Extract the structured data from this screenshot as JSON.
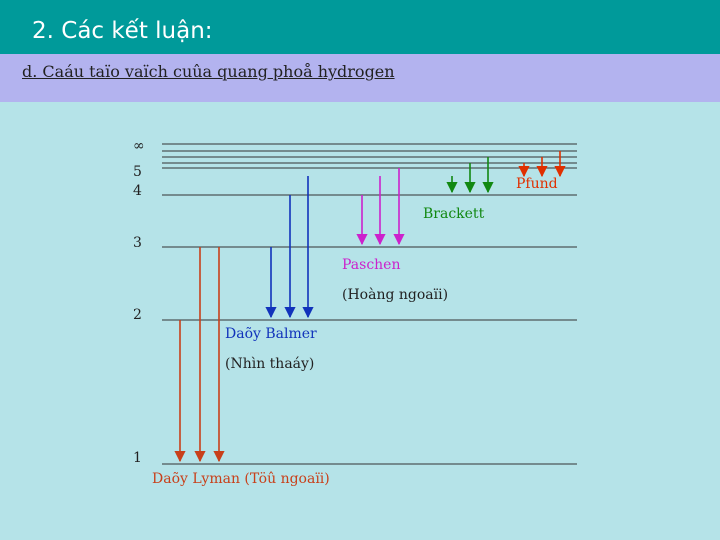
{
  "header": {
    "title": "2. Các kết luận:",
    "subtitle": "d. Caáu taïo vaïch cuûa quang phoå hydrogen"
  },
  "diagram": {
    "levels": [
      {
        "label": "∞"
      },
      {
        "label": "5"
      },
      {
        "label": "4"
      },
      {
        "label": "3"
      },
      {
        "label": "2"
      },
      {
        "label": "1"
      }
    ],
    "series": [
      {
        "name": "Pfund",
        "color": "#e03000"
      },
      {
        "name": "Brackett",
        "color": "#118811"
      },
      {
        "name": "Paschen",
        "sublabel": "(Hoàng ngoaïi)",
        "color": "#cc22cc"
      },
      {
        "name": "Daõy Balmer",
        "sublabel": "(Nhìn thaáy)",
        "color": "#1133bb"
      },
      {
        "name": "Daõy Lyman (Töû ngoaïi)",
        "color": "#c8401a"
      }
    ]
  }
}
